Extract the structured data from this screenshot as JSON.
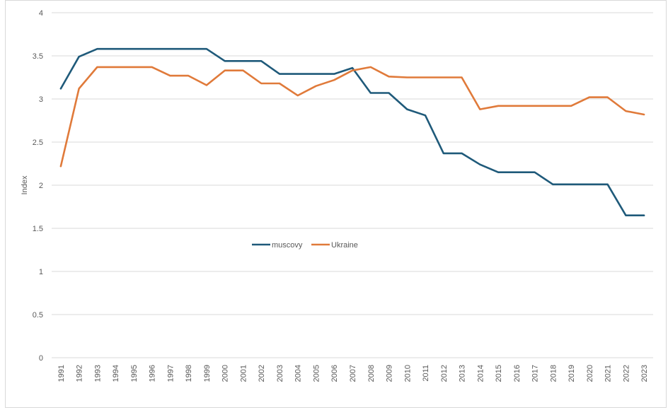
{
  "chart_data": {
    "type": "line",
    "title": "",
    "xlabel": "",
    "ylabel": "Index",
    "ylim": [
      0,
      4
    ],
    "yticks": [
      "0",
      "0.5",
      "1",
      "1.5",
      "2",
      "2.5",
      "3",
      "3.5",
      "4"
    ],
    "grid": "horizontal",
    "legend_position": "center",
    "categories": [
      "1991",
      "1992",
      "1993",
      "1994",
      "1995",
      "1996",
      "1997",
      "1998",
      "1999",
      "2000",
      "2001",
      "2002",
      "2003",
      "2004",
      "2005",
      "2006",
      "2007",
      "2008",
      "2009",
      "2010",
      "2011",
      "2012",
      "2013",
      "2014",
      "2015",
      "2016",
      "2017",
      "2018",
      "2019",
      "2020",
      "2021",
      "2022",
      "2023"
    ],
    "series": [
      {
        "name": "muscovy",
        "color": "#1f5a7a",
        "values": [
          3.12,
          3.49,
          3.58,
          3.58,
          3.58,
          3.58,
          3.58,
          3.58,
          3.58,
          3.44,
          3.44,
          3.44,
          3.29,
          3.29,
          3.29,
          3.29,
          3.36,
          3.07,
          3.07,
          2.88,
          2.81,
          2.37,
          2.37,
          2.24,
          2.15,
          2.15,
          2.15,
          2.01,
          2.01,
          2.01,
          2.01,
          1.65,
          1.65
        ]
      },
      {
        "name": "Ukraine",
        "color": "#e07a3a",
        "values": [
          2.22,
          3.12,
          3.37,
          3.37,
          3.37,
          3.37,
          3.27,
          3.27,
          3.16,
          3.33,
          3.33,
          3.18,
          3.18,
          3.04,
          3.15,
          3.22,
          3.33,
          3.37,
          3.26,
          3.25,
          3.25,
          3.25,
          3.25,
          2.88,
          2.92,
          2.92,
          2.92,
          2.92,
          2.92,
          3.02,
          3.02,
          2.86,
          2.82
        ]
      }
    ]
  }
}
